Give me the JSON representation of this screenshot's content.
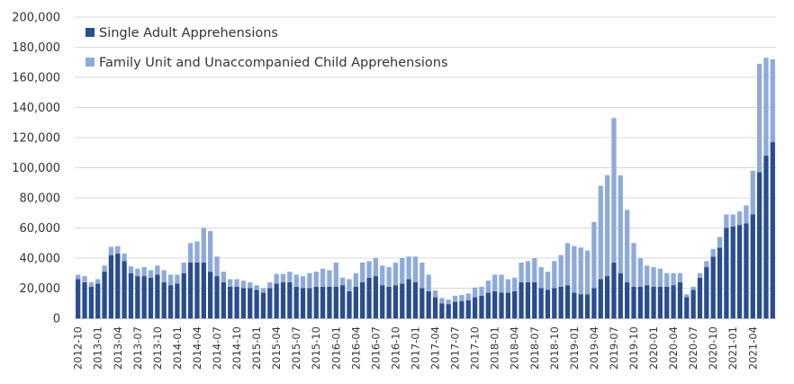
{
  "chart_data": {
    "type": "bar",
    "stacked": true,
    "colors": {
      "single": "#2a4d8f",
      "family": "#8eaadb",
      "grid": "#d9d9d9",
      "axis": "#bfbfbf"
    },
    "legend": {
      "position": "top-left"
    },
    "grid": true,
    "ylim": [
      0,
      200000
    ],
    "yticks": [
      0,
      20000,
      40000,
      60000,
      80000,
      100000,
      120000,
      140000,
      160000,
      180000,
      200000
    ],
    "ytick_labels": [
      "0",
      "20,000",
      "40,000",
      "60,000",
      "80,000",
      "100,000",
      "120,000",
      "140,000",
      "160,000",
      "180,000",
      "200,000"
    ],
    "start_month": "2012-10",
    "xtick_labels": [
      "2012-10",
      "2013-01",
      "2013-04",
      "2013-07",
      "2013-10",
      "2014-01",
      "2014-04",
      "2014-07",
      "2014-10",
      "2015-01",
      "2015-04",
      "2015-07",
      "2015-10",
      "2016-01",
      "2016-04",
      "2016-07",
      "2016-10",
      "2017-01",
      "2017-04",
      "2017-07",
      "2017-10",
      "2018-01",
      "2018-04",
      "2018-07",
      "2018-10",
      "2019-01",
      "2019-04",
      "2019-07",
      "2019-10",
      "2020-01",
      "2020-04",
      "2020-07",
      "2020-10",
      "2021-01",
      "2021-04"
    ],
    "series": [
      {
        "name": "Single Adult Apprehensions",
        "values": [
          26000,
          24000,
          21000,
          23000,
          31000,
          42000,
          43000,
          38000,
          30000,
          28000,
          28000,
          27000,
          29000,
          24000,
          22000,
          23000,
          30000,
          37000,
          37000,
          37000,
          31000,
          28000,
          24000,
          21000,
          21000,
          20000,
          20000,
          19000,
          17000,
          20000,
          23000,
          24000,
          24000,
          21000,
          20000,
          20000,
          21000,
          21000,
          21000,
          21000,
          22000,
          18000,
          21000,
          24000,
          27000,
          28000,
          22000,
          21000,
          22000,
          23000,
          26000,
          24000,
          20000,
          18000,
          14000,
          10000,
          9500,
          11000,
          11500,
          12000,
          14000,
          15000,
          17000,
          18000,
          17000,
          17000,
          18000,
          24000,
          24000,
          24000,
          20000,
          19000,
          20000,
          21000,
          22000,
          17000,
          16000,
          16000,
          20000,
          26000,
          28000,
          37000,
          30000,
          24000,
          21000,
          21000,
          22000,
          21000,
          21000,
          21000,
          22000,
          24000,
          14000,
          19000,
          27000,
          34000,
          41000,
          47000,
          60000,
          61000,
          62000,
          63000,
          69000,
          97000,
          108000,
          117000
        ]
      },
      {
        "name": "Family Unit and Unaccompanied Child Apprehensions",
        "values": [
          3000,
          4000,
          3000,
          3000,
          4000,
          5500,
          5000,
          5000,
          4500,
          5000,
          6000,
          5000,
          6000,
          8000,
          7000,
          6000,
          7000,
          13000,
          14000,
          23000,
          27000,
          13000,
          7000,
          5000,
          5000,
          5000,
          4000,
          3000,
          3000,
          4000,
          6500,
          5500,
          7000,
          8000,
          8000,
          10000,
          10000,
          12000,
          11000,
          16000,
          5000,
          8000,
          9000,
          13000,
          11000,
          12000,
          13000,
          13000,
          15000,
          17000,
          15000,
          17000,
          17000,
          11000,
          4500,
          3500,
          3000,
          4000,
          4000,
          4500,
          6500,
          6000,
          8000,
          11000,
          12000,
          9000,
          9000,
          13000,
          14000,
          16000,
          14000,
          12000,
          18000,
          21000,
          28000,
          31000,
          31000,
          29000,
          44000,
          62000,
          67000,
          96000,
          65000,
          48000,
          29000,
          19000,
          13000,
          13000,
          12000,
          9000,
          8000,
          6000,
          2000,
          2000,
          3000,
          4000,
          5000,
          7000,
          9000,
          8000,
          9000,
          12000,
          29000,
          72000,
          65000,
          55000
        ]
      }
    ]
  }
}
